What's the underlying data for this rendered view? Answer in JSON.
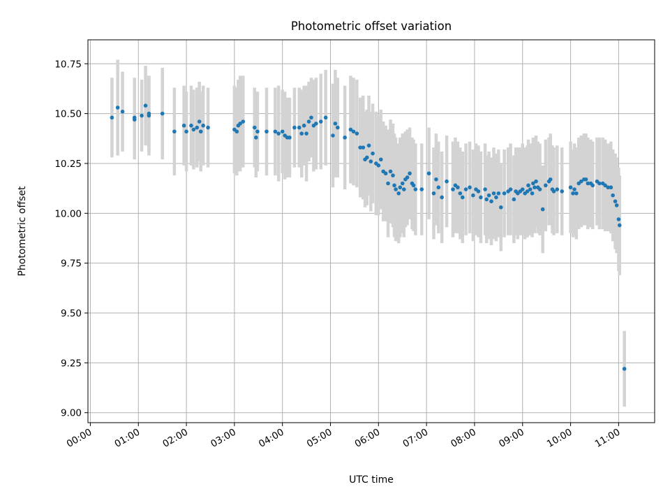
{
  "chart_data": {
    "type": "scatter",
    "title": "Photometric offset variation",
    "xlabel": "UTC time",
    "ylabel": "Photometric offset",
    "xlim": [
      -0.05,
      11.75
    ],
    "ylim": [
      8.95,
      10.87
    ],
    "grid": true,
    "point_color": "#1f77b4",
    "errorbar_color": "#d3d3d3",
    "x_ticks": [
      {
        "value": 0,
        "label": "00:00"
      },
      {
        "value": 1,
        "label": "01:00"
      },
      {
        "value": 2,
        "label": "02:00"
      },
      {
        "value": 3,
        "label": "03:00"
      },
      {
        "value": 4,
        "label": "04:00"
      },
      {
        "value": 5,
        "label": "05:00"
      },
      {
        "value": 6,
        "label": "06:00"
      },
      {
        "value": 7,
        "label": "07:00"
      },
      {
        "value": 8,
        "label": "08:00"
      },
      {
        "value": 9,
        "label": "09:00"
      },
      {
        "value": 10,
        "label": "10:00"
      },
      {
        "value": 11,
        "label": "11:00"
      }
    ],
    "y_ticks": [
      {
        "value": 9.0,
        "label": "9.00"
      },
      {
        "value": 9.25,
        "label": "9.25"
      },
      {
        "value": 9.5,
        "label": "9.50"
      },
      {
        "value": 9.75,
        "label": "9.75"
      },
      {
        "value": 10.0,
        "label": "10.00"
      },
      {
        "value": 10.25,
        "label": "10.25"
      },
      {
        "value": 10.5,
        "label": "10.50"
      },
      {
        "value": 10.75,
        "label": "10.75"
      }
    ],
    "points": [
      [
        0.45,
        10.48,
        0.2
      ],
      [
        0.57,
        10.53,
        0.24
      ],
      [
        0.67,
        10.51,
        0.2
      ],
      [
        0.92,
        10.47,
        0.2
      ],
      [
        0.92,
        10.48,
        0.2
      ],
      [
        1.07,
        10.49,
        0.18
      ],
      [
        1.15,
        10.54,
        0.2
      ],
      [
        1.22,
        10.49,
        0.2
      ],
      [
        1.22,
        10.5,
        0.19
      ],
      [
        1.5,
        10.5,
        0.23
      ],
      [
        1.75,
        10.41,
        0.22
      ],
      [
        1.95,
        10.44,
        0.2
      ],
      [
        2.0,
        10.41,
        0.2
      ],
      [
        2.1,
        10.44,
        0.2
      ],
      [
        2.15,
        10.42,
        0.2
      ],
      [
        2.22,
        10.43,
        0.2
      ],
      [
        2.27,
        10.46,
        0.2
      ],
      [
        2.3,
        10.41,
        0.2
      ],
      [
        2.35,
        10.44,
        0.2
      ],
      [
        2.45,
        10.43,
        0.2
      ],
      [
        3.0,
        10.42,
        0.22
      ],
      [
        3.05,
        10.41,
        0.22
      ],
      [
        3.08,
        10.44,
        0.23
      ],
      [
        3.12,
        10.45,
        0.24
      ],
      [
        3.18,
        10.46,
        0.23
      ],
      [
        3.42,
        10.43,
        0.2
      ],
      [
        3.45,
        10.38,
        0.2
      ],
      [
        3.48,
        10.41,
        0.2
      ],
      [
        3.67,
        10.41,
        0.22
      ],
      [
        3.85,
        10.41,
        0.22
      ],
      [
        3.92,
        10.4,
        0.24
      ],
      [
        4.0,
        10.41,
        0.21
      ],
      [
        4.05,
        10.39,
        0.22
      ],
      [
        4.1,
        10.38,
        0.2
      ],
      [
        4.15,
        10.38,
        0.2
      ],
      [
        4.25,
        10.43,
        0.2
      ],
      [
        4.35,
        10.43,
        0.2
      ],
      [
        4.4,
        10.4,
        0.22
      ],
      [
        4.45,
        10.44,
        0.2
      ],
      [
        4.5,
        10.4,
        0.24
      ],
      [
        4.55,
        10.46,
        0.2
      ],
      [
        4.6,
        10.48,
        0.2
      ],
      [
        4.65,
        10.44,
        0.23
      ],
      [
        4.7,
        10.45,
        0.23
      ],
      [
        4.8,
        10.46,
        0.24
      ],
      [
        4.9,
        10.48,
        0.24
      ],
      [
        5.05,
        10.39,
        0.26
      ],
      [
        5.1,
        10.45,
        0.27
      ],
      [
        5.15,
        10.43,
        0.25
      ],
      [
        5.3,
        10.38,
        0.26
      ],
      [
        5.42,
        10.42,
        0.27
      ],
      [
        5.48,
        10.41,
        0.27
      ],
      [
        5.55,
        10.4,
        0.27
      ],
      [
        5.62,
        10.33,
        0.25
      ],
      [
        5.68,
        10.33,
        0.26
      ],
      [
        5.72,
        10.27,
        0.24
      ],
      [
        5.76,
        10.28,
        0.24
      ],
      [
        5.8,
        10.34,
        0.25
      ],
      [
        5.84,
        10.26,
        0.25
      ],
      [
        5.88,
        10.3,
        0.25
      ],
      [
        5.95,
        10.25,
        0.26
      ],
      [
        6.0,
        10.24,
        0.25
      ],
      [
        6.05,
        10.27,
        0.25
      ],
      [
        6.1,
        10.21,
        0.25
      ],
      [
        6.15,
        10.2,
        0.24
      ],
      [
        6.2,
        10.15,
        0.27
      ],
      [
        6.25,
        10.21,
        0.26
      ],
      [
        6.3,
        10.19,
        0.26
      ],
      [
        6.33,
        10.14,
        0.26
      ],
      [
        6.36,
        10.12,
        0.26
      ],
      [
        6.42,
        10.1,
        0.25
      ],
      [
        6.45,
        10.13,
        0.25
      ],
      [
        6.5,
        10.15,
        0.25
      ],
      [
        6.53,
        10.12,
        0.24
      ],
      [
        6.56,
        10.17,
        0.24
      ],
      [
        6.6,
        10.18,
        0.24
      ],
      [
        6.65,
        10.2,
        0.23
      ],
      [
        6.7,
        10.15,
        0.23
      ],
      [
        6.73,
        10.14,
        0.23
      ],
      [
        6.77,
        10.12,
        0.23
      ],
      [
        6.9,
        10.12,
        0.23
      ],
      [
        7.05,
        10.2,
        0.23
      ],
      [
        7.15,
        10.1,
        0.23
      ],
      [
        7.2,
        10.17,
        0.23
      ],
      [
        7.25,
        10.13,
        0.23
      ],
      [
        7.32,
        10.08,
        0.23
      ],
      [
        7.42,
        10.16,
        0.23
      ],
      [
        7.55,
        10.12,
        0.24
      ],
      [
        7.6,
        10.14,
        0.24
      ],
      [
        7.65,
        10.13,
        0.23
      ],
      [
        7.7,
        10.1,
        0.23
      ],
      [
        7.75,
        10.08,
        0.23
      ],
      [
        7.82,
        10.12,
        0.23
      ],
      [
        7.9,
        10.13,
        0.23
      ],
      [
        7.97,
        10.09,
        0.23
      ],
      [
        8.03,
        10.12,
        0.23
      ],
      [
        8.08,
        10.11,
        0.23
      ],
      [
        8.13,
        10.08,
        0.23
      ],
      [
        8.22,
        10.12,
        0.23
      ],
      [
        8.25,
        10.07,
        0.22
      ],
      [
        8.3,
        10.09,
        0.22
      ],
      [
        8.35,
        10.06,
        0.22
      ],
      [
        8.4,
        10.1,
        0.23
      ],
      [
        8.45,
        10.08,
        0.22
      ],
      [
        8.5,
        10.1,
        0.22
      ],
      [
        8.55,
        10.03,
        0.22
      ],
      [
        8.62,
        10.1,
        0.22
      ],
      [
        8.7,
        10.11,
        0.22
      ],
      [
        8.75,
        10.12,
        0.23
      ],
      [
        8.82,
        10.07,
        0.22
      ],
      [
        8.86,
        10.11,
        0.22
      ],
      [
        8.9,
        10.1,
        0.23
      ],
      [
        8.95,
        10.11,
        0.22
      ],
      [
        9.0,
        10.12,
        0.23
      ],
      [
        9.05,
        10.1,
        0.23
      ],
      [
        9.1,
        10.11,
        0.23
      ],
      [
        9.12,
        10.14,
        0.23
      ],
      [
        9.16,
        10.12,
        0.23
      ],
      [
        9.2,
        10.1,
        0.22
      ],
      [
        9.22,
        10.15,
        0.23
      ],
      [
        9.25,
        10.13,
        0.23
      ],
      [
        9.28,
        10.16,
        0.23
      ],
      [
        9.32,
        10.13,
        0.23
      ],
      [
        9.36,
        10.12,
        0.23
      ],
      [
        9.42,
        10.02,
        0.22
      ],
      [
        9.48,
        10.14,
        0.23
      ],
      [
        9.55,
        10.16,
        0.22
      ],
      [
        9.58,
        10.17,
        0.23
      ],
      [
        9.62,
        10.12,
        0.22
      ],
      [
        9.65,
        10.11,
        0.22
      ],
      [
        9.72,
        10.12,
        0.22
      ],
      [
        9.82,
        10.11,
        0.22
      ],
      [
        10.0,
        10.13,
        0.23
      ],
      [
        10.05,
        10.1,
        0.22
      ],
      [
        10.08,
        10.12,
        0.23
      ],
      [
        10.12,
        10.1,
        0.23
      ],
      [
        10.17,
        10.15,
        0.23
      ],
      [
        10.22,
        10.16,
        0.23
      ],
      [
        10.28,
        10.17,
        0.23
      ],
      [
        10.32,
        10.17,
        0.23
      ],
      [
        10.36,
        10.15,
        0.23
      ],
      [
        10.42,
        10.15,
        0.22
      ],
      [
        10.46,
        10.14,
        0.22
      ],
      [
        10.55,
        10.16,
        0.22
      ],
      [
        10.6,
        10.15,
        0.23
      ],
      [
        10.67,
        10.15,
        0.23
      ],
      [
        10.72,
        10.14,
        0.23
      ],
      [
        10.78,
        10.13,
        0.22
      ],
      [
        10.84,
        10.13,
        0.23
      ],
      [
        10.88,
        10.09,
        0.23
      ],
      [
        10.93,
        10.06,
        0.24
      ],
      [
        10.96,
        10.04,
        0.24
      ],
      [
        11.0,
        9.97,
        0.26
      ],
      [
        11.02,
        9.94,
        0.25
      ],
      [
        11.12,
        9.22,
        0.19
      ]
    ]
  }
}
